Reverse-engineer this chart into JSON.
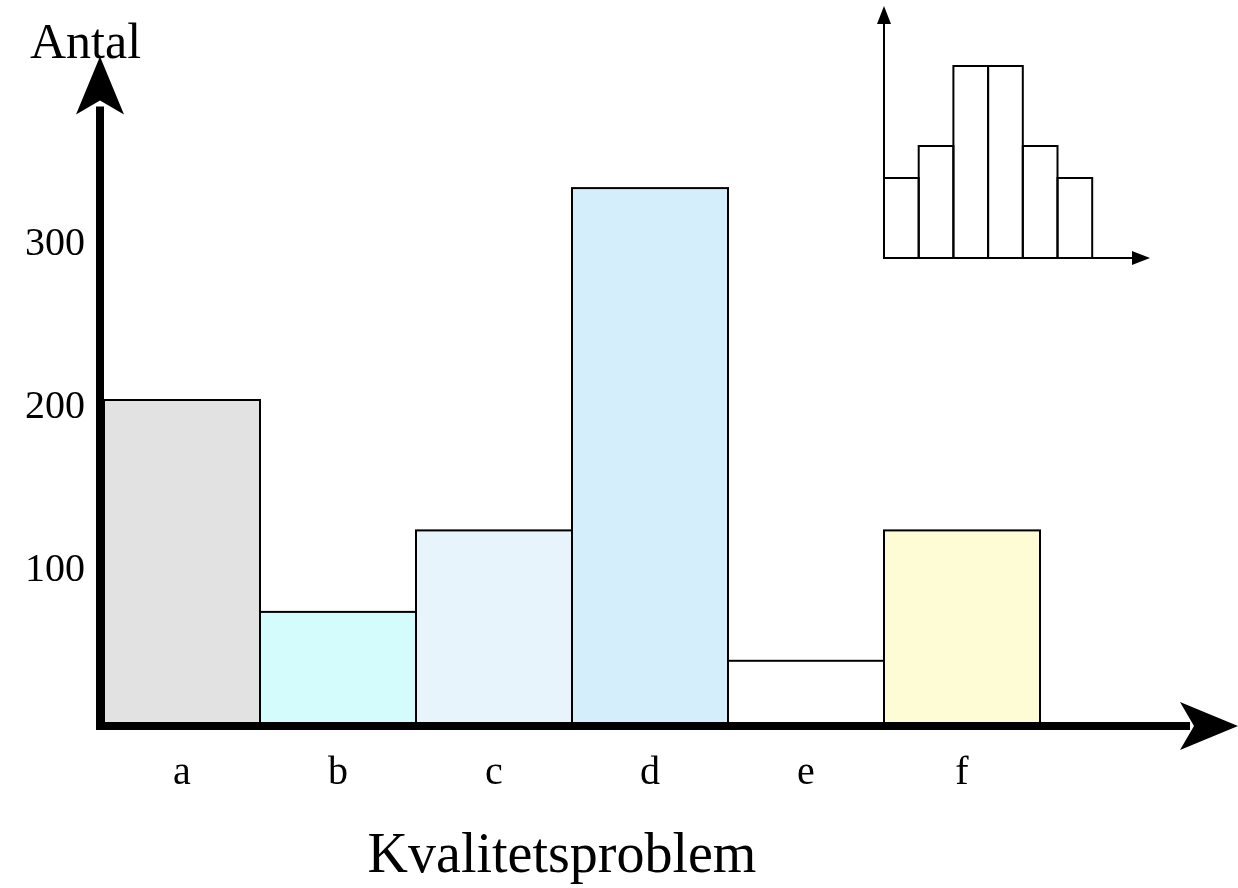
{
  "chart_data": {
    "type": "bar",
    "ylabel": "Antal",
    "xlabel": "Kvalitetsproblem",
    "categories": [
      "a",
      "b",
      "c",
      "d",
      "e",
      "f"
    ],
    "values": [
      200,
      70,
      120,
      330,
      40,
      120
    ],
    "colors": [
      "#e2e2e2",
      "#d4fcfc",
      "#e8f4fc",
      "#d4eefc",
      "#ffffff",
      "#fefcd4"
    ],
    "ylim": [
      0,
      380
    ],
    "yticks": [
      100,
      200,
      300
    ]
  }
}
